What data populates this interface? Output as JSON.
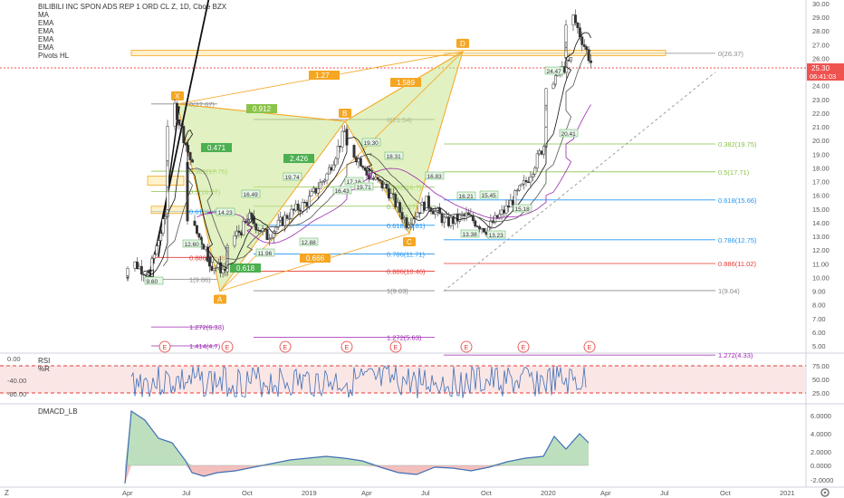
{
  "header": {
    "symbol_title": "BILIBILI INC SPON ADS REP 1 ORD CL Z, 1D, Cboe BZX",
    "indicators": [
      "MA",
      "EMA",
      "EMA",
      "EMA",
      "EMA",
      "Pivots HL"
    ]
  },
  "price_badges": {
    "last_price": "25.30",
    "countdown": "06:41:03"
  },
  "panels": {
    "rsi": {
      "label": "RSI",
      "wr_label": "%R"
    },
    "macd": {
      "label": "DMACD_LB"
    }
  },
  "bottom_bar": {
    "left_icon": "Z",
    "right_icon": "gear-icon"
  },
  "harmonic": {
    "points": [
      {
        "id": "X",
        "label": "X"
      },
      {
        "id": "A",
        "label": "A"
      },
      {
        "id": "B",
        "label": "B"
      },
      {
        "id": "C",
        "label": "C"
      },
      {
        "id": "D",
        "label": "D"
      }
    ],
    "ratios": [
      "0.912",
      "0.471",
      "2.426",
      "1.27",
      "1.589",
      "0.618",
      "0.666"
    ]
  },
  "fib_left": [
    "0(22.67)",
    "0.382(17.76)",
    "0.5(16.27)",
    "0.618(14.81)",
    "0.886(11.46)",
    "1(9.86)",
    "1.272(6.38)",
    "1.414(4.?)"
  ],
  "fib_mid": [
    "0(21.54)",
    "0.382(16.?)",
    "0.5(15.2?)",
    "0.618(13.81)",
    "0.786(11.71)",
    "0.886(10.46)",
    "1(9.03)",
    "1.272(5.63)"
  ],
  "fib_right": [
    "0(26.37)",
    "0.382(19.75)",
    "0.5(17.71)",
    "0.618(15.66)",
    "0.786(12.75)",
    "0.886(11.02)",
    "1(9.04)",
    "1.272(4.33)"
  ],
  "pivot_labels": [
    "9.60",
    "12.60",
    "14.23",
    "11.96",
    "12.88",
    "16.49",
    "19.74",
    "17.16",
    "16.43",
    "19.71",
    "19.30",
    "18.31",
    "16.83",
    "16.21",
    "15.45",
    "13.38",
    "13.23",
    "15.18",
    "24.47",
    "20.41"
  ],
  "events": [
    "E",
    "E",
    "E",
    "E",
    "E",
    "E",
    "E",
    "E"
  ],
  "colors": {
    "up": "#26a69a",
    "down": "#ef5350",
    "harmonic_fill": "#c9e58f",
    "harmonic_line": "#f5a623",
    "fib_green": "#8bc34a",
    "fib_blue": "#2196f3",
    "fib_red": "#e53935",
    "fib_purple": "#9c27b0",
    "rsi": "#3f6fb5",
    "macd_fill": "#b6dcb7",
    "macd_neg": "#f2b8b5"
  },
  "chart_data": {
    "type": "candlestick",
    "title": "BILIBILI INC SPON ADS REP 1 ORD CL Z, 1D, Cboe BZX",
    "x_ticks": [
      "Apr",
      "Jul",
      "Oct",
      "2019",
      "Apr",
      "Jul",
      "Oct",
      "2020",
      "Apr",
      "Jul",
      "Oct",
      "2021"
    ],
    "y_ticks_price": [
      "30.00",
      "29.00",
      "28.00",
      "27.00",
      "26.00",
      "25.00",
      "24.00",
      "23.00",
      "22.00",
      "21.00",
      "20.00",
      "19.00",
      "18.00",
      "17.00",
      "16.00",
      "15.00",
      "14.00",
      "13.00",
      "12.00",
      "11.00",
      "10.00",
      "9.00",
      "8.00",
      "7.00",
      "6.00",
      "5.00"
    ],
    "ylim": [
      4.5,
      30.5
    ],
    "y_ticks_rsi": [
      "75.00",
      "50.00",
      "25.00"
    ],
    "y_ticks_wr_left": [
      "0.00",
      "-40.00",
      "-80.00"
    ],
    "y_ticks_macd": [
      "6.0000",
      "4.0000",
      "2.0000",
      "0.0000",
      "-2.0000"
    ],
    "price_series_approx": [
      [
        "Apr 2018",
        10.0
      ],
      [
        "Apr 2018",
        11.0
      ],
      [
        "May 2018",
        9.9
      ],
      [
        "Jun 2018",
        15.0
      ],
      [
        "Jun 2018",
        22.5
      ],
      [
        "Jul 2018",
        17.5
      ],
      [
        "Jul 2018",
        13.5
      ],
      [
        "Aug 2018",
        11.0
      ],
      [
        "Sep 2018",
        10.5
      ],
      [
        "Sep 2018",
        13.0
      ],
      [
        "Oct 2018",
        14.5
      ],
      [
        "Nov 2018",
        13.0
      ],
      [
        "Dec 2018",
        14.5
      ],
      [
        "Jan 2019",
        15.5
      ],
      [
        "Feb 2019",
        17.5
      ],
      [
        "Mar 2019",
        21.0
      ],
      [
        "Mar 2019",
        19.0
      ],
      [
        "Apr 2019",
        17.5
      ],
      [
        "May 2019",
        16.5
      ],
      [
        "Jun 2019",
        14.0
      ],
      [
        "Jul 2019",
        15.5
      ],
      [
        "Aug 2019",
        14.0
      ],
      [
        "Sep 2019",
        14.5
      ],
      [
        "Oct 2019",
        13.5
      ],
      [
        "Nov 2019",
        15.0
      ],
      [
        "Dec 2019",
        17.0
      ],
      [
        "Jan 2020",
        20.0
      ],
      [
        "Jan 2020",
        24.5
      ],
      [
        "Feb 2020",
        26.0
      ],
      [
        "Feb 2020",
        29.0
      ],
      [
        "Mar 2020",
        25.3
      ]
    ],
    "last_price": 25.3
  }
}
